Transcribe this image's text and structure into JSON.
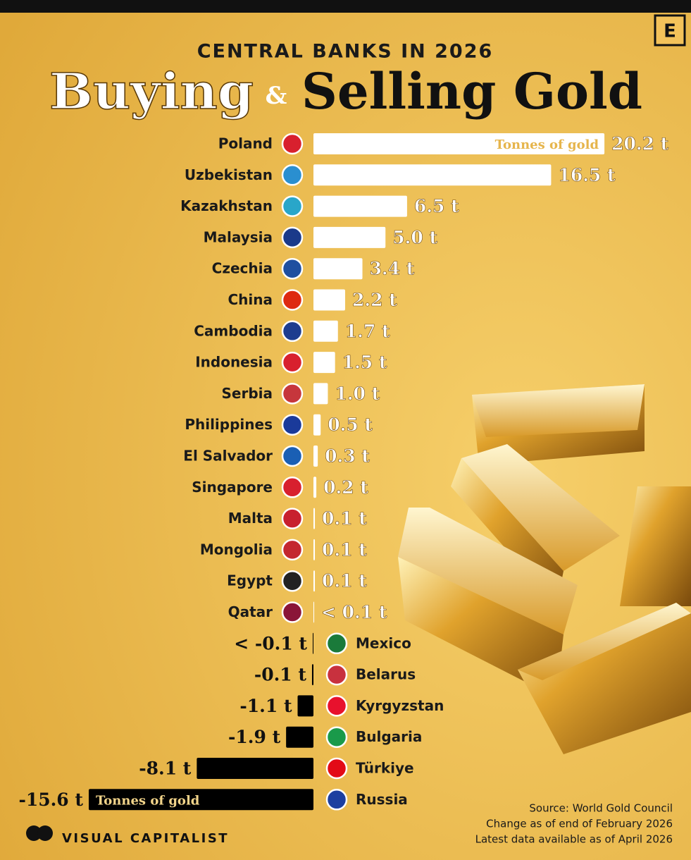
{
  "chart_data": {
    "type": "bar",
    "orientation": "horizontal",
    "subtitle": "CENTRAL BANKS IN 2026",
    "title_buying": "Buying",
    "title_amp": "&",
    "title_selling": "Selling Gold",
    "categories": [
      "Poland",
      "Uzbekistan",
      "Kazakhstan",
      "Malaysia",
      "Czechia",
      "China",
      "Cambodia",
      "Indonesia",
      "Serbia",
      "Philippines",
      "El Salvador",
      "Singapore",
      "Malta",
      "Mongolia",
      "Egypt",
      "Qatar",
      "Mexico",
      "Belarus",
      "Kyrgyzstan",
      "Bulgaria",
      "Türkiye",
      "Russia"
    ],
    "values": [
      20.2,
      16.5,
      6.5,
      5.0,
      3.4,
      2.2,
      1.7,
      1.5,
      1.0,
      0.5,
      0.3,
      0.2,
      0.1,
      0.1,
      0.1,
      0.05,
      -0.05,
      -0.1,
      -1.1,
      -1.9,
      -8.1,
      -15.6
    ],
    "value_labels": [
      "20.2 t",
      "16.5 t",
      "6.5 t",
      "5.0 t",
      "3.4 t",
      "2.2 t",
      "1.7 t",
      "1.5 t",
      "1.0 t",
      "0.5 t",
      "0.3 t",
      "0.2 t",
      "0.1 t",
      "0.1 t",
      "0.1 t",
      "< 0.1 t",
      "< -0.1 t",
      "-0.1 t",
      "-1.1 t",
      "-1.9 t",
      "-8.1 t",
      "-15.6 t"
    ],
    "positive_color": "#ffffff",
    "negative_color": "#000000",
    "annotations": [
      "Tonnes of gold",
      "Tonnes of gold"
    ],
    "source": [
      "Source: World Gold Council",
      "Change as of end of February 2026",
      "Latest data available as of April 2026"
    ],
    "brand": "VISUAL CAPITALIST",
    "badge": "E"
  }
}
